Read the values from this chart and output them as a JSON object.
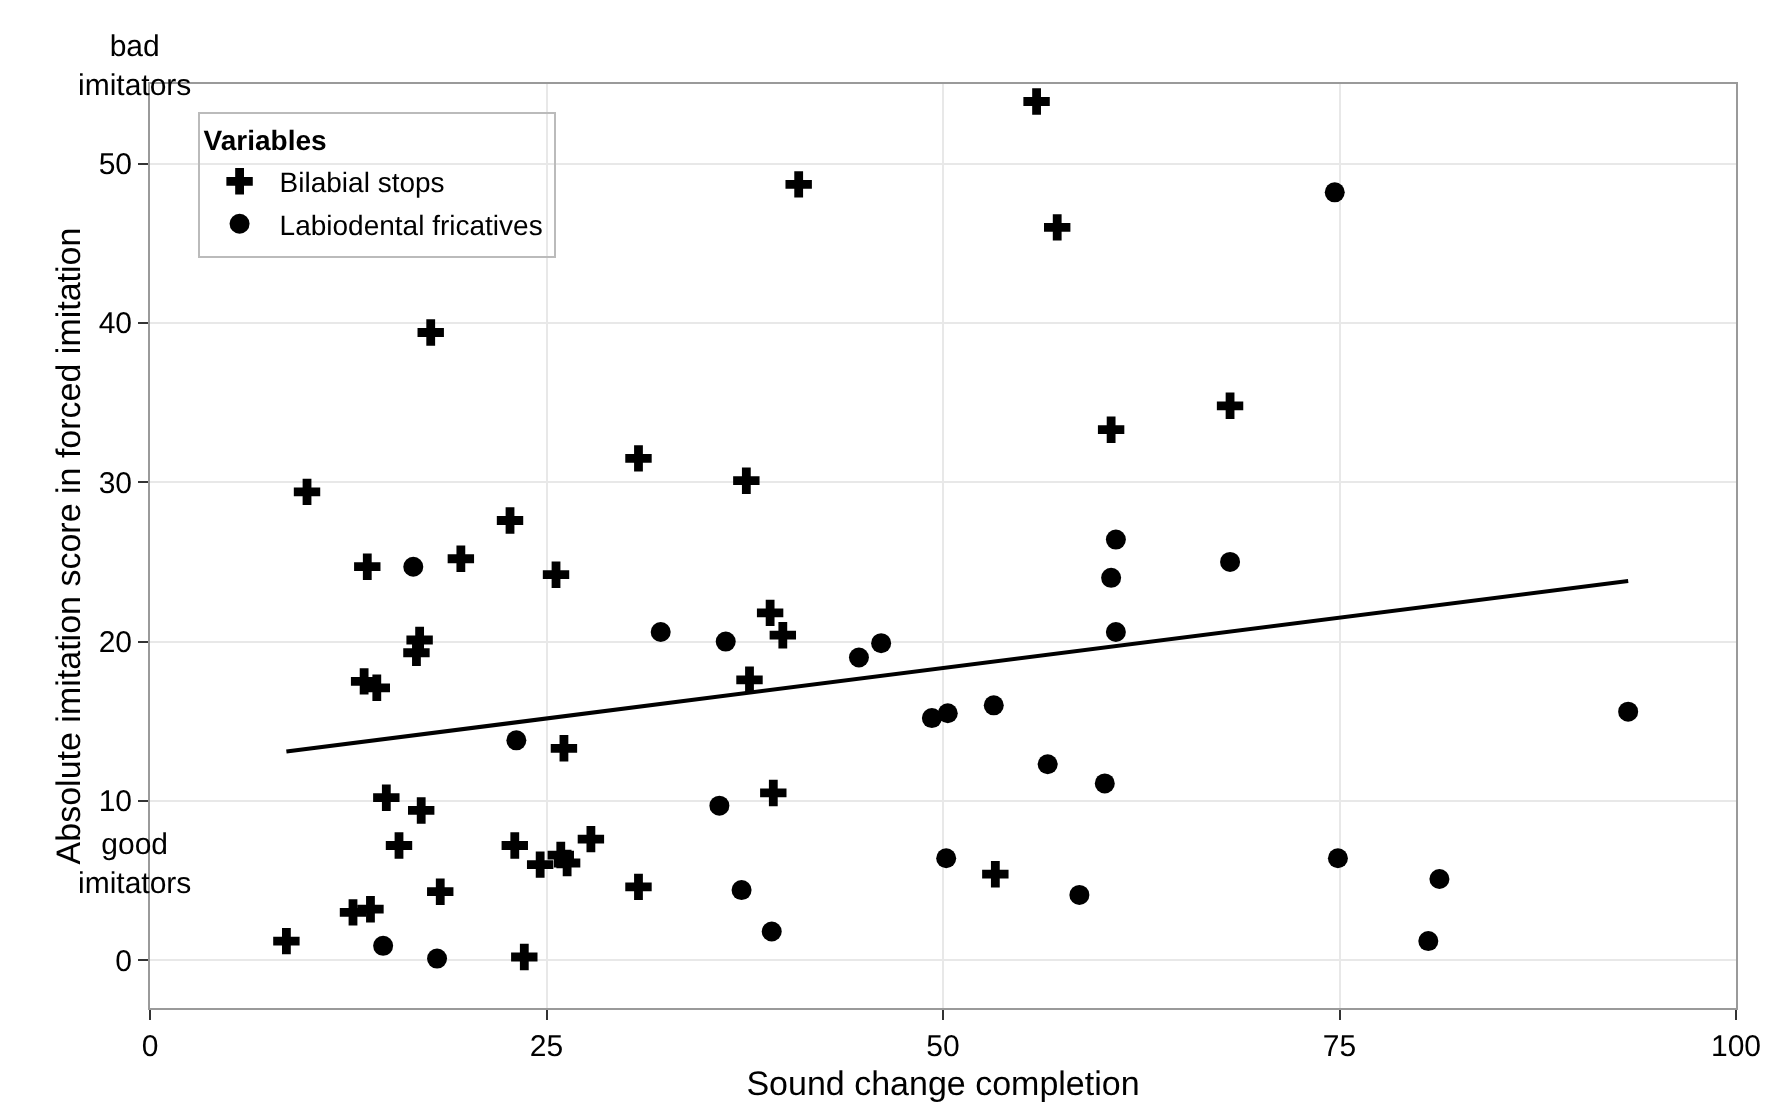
{
  "chart_data": {
    "type": "scatter",
    "xlabel": "Sound change completion",
    "ylabel": "Absolute imitation score in forced imitation",
    "legend_title": "Variables",
    "xlim": [
      0,
      100
    ],
    "xticks": [
      0,
      25,
      50,
      75,
      100
    ],
    "ylim": [
      -3,
      55
    ],
    "yticks": [
      0,
      10,
      20,
      30,
      40,
      50
    ],
    "grid": true,
    "legend": "top left",
    "annotations": [
      "bad\nimitators",
      "good\nimitators"
    ],
    "series": [
      {
        "name": "Bilabial stops",
        "marker": "cross",
        "color": "#000000",
        "x": [
          40.9,
          17.7,
          9.9,
          30.8,
          37.6,
          22.7,
          55.9,
          57.2,
          68.1,
          60.6,
          13.7,
          19.6,
          25.6,
          17.0,
          16.8,
          13.5,
          14.3,
          26.1,
          39.1,
          39.9,
          37.8,
          14.9,
          17.1,
          15.7,
          23.0,
          24.6,
          25.9,
          26.3,
          27.8,
          30.8,
          39.3,
          18.3,
          12.8,
          13.9,
          8.6,
          23.6,
          53.3
        ],
        "values": [
          48.7,
          39.4,
          29.4,
          31.5,
          30.1,
          27.6,
          53.9,
          46.0,
          34.8,
          33.3,
          24.7,
          25.2,
          24.2,
          20.1,
          19.3,
          17.5,
          17.1,
          13.3,
          21.8,
          20.4,
          17.6,
          10.2,
          9.4,
          7.2,
          7.2,
          6.0,
          6.6,
          6.1,
          7.6,
          4.6,
          10.5,
          4.3,
          3.0,
          3.2,
          1.2,
          0.2,
          5.4
        ]
      },
      {
        "name": "Labiodental fricatives",
        "marker": "circle",
        "color": "#000000",
        "x": [
          74.7,
          60.9,
          68.1,
          16.6,
          23.1,
          32.2,
          36.3,
          44.7,
          46.1,
          35.9,
          37.3,
          39.2,
          14.7,
          18.1,
          60.6,
          60.9,
          49.3,
          50.3,
          53.2,
          56.6,
          60.2,
          93.2,
          50.2,
          58.6,
          74.9,
          81.3,
          80.6
        ],
        "values": [
          48.2,
          26.4,
          25.0,
          24.7,
          13.8,
          20.6,
          20.0,
          19.0,
          19.9,
          9.7,
          4.4,
          1.8,
          0.9,
          0.1,
          24.0,
          20.6,
          15.2,
          15.5,
          16.0,
          12.3,
          11.1,
          15.6,
          6.4,
          4.1,
          6.4,
          5.1,
          1.2
        ]
      },
      {
        "type": "line",
        "color": "#000000",
        "marker": "none",
        "x": [
          8.6,
          93.2
        ],
        "values": [
          13.1,
          23.8
        ]
      }
    ]
  }
}
